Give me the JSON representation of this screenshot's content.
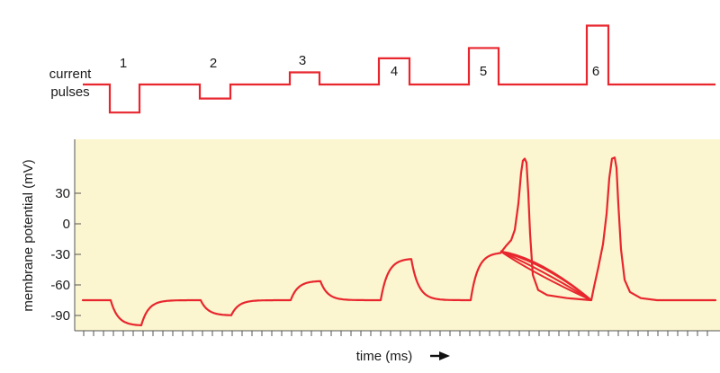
{
  "chart_data": {
    "type": "line",
    "pulse_panel": {
      "label_line1": "current",
      "label_line2": "pulses",
      "pulses": [
        {
          "label": "1",
          "amplitude": -3
        },
        {
          "label": "2",
          "amplitude": -1.5
        },
        {
          "label": "3",
          "amplitude": 1.3
        },
        {
          "label": "4",
          "amplitude": 2.8
        },
        {
          "label": "5",
          "amplitude": 3.9
        },
        {
          "label": "6",
          "amplitude": 6.3
        }
      ]
    },
    "potential_panel": {
      "ylabel": "membrane potential (mV)",
      "xlabel": "time (ms)",
      "ylim": [
        -105,
        60
      ],
      "yticks": [
        30,
        0,
        -30,
        -60,
        -90
      ],
      "resting_potential": -75,
      "threshold": -27,
      "background_color": "#fbf6cf",
      "line_color": "#e8262e"
    }
  }
}
